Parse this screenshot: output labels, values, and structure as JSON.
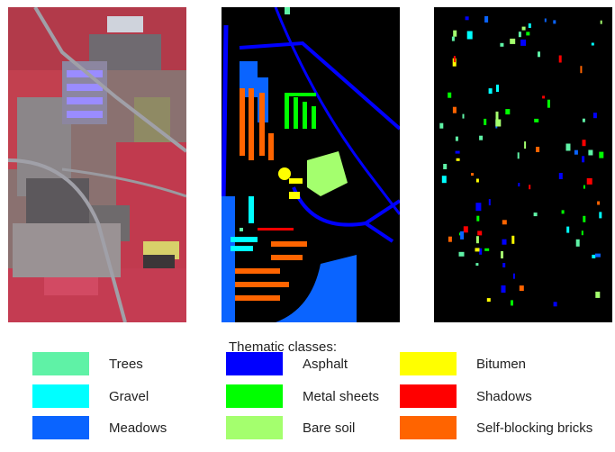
{
  "panels": [
    {
      "id": "false-color-composite"
    },
    {
      "id": "ground-truth-map"
    },
    {
      "id": "training-samples-map"
    }
  ],
  "legend": {
    "title": "Thematic classes:",
    "items": [
      {
        "label": "Trees",
        "color": "#5ff2a6"
      },
      {
        "label": "Gravel",
        "color": "#00ffff"
      },
      {
        "label": "Meadows",
        "color": "#0a64ff"
      },
      {
        "label": "Asphalt",
        "color": "#0000ff"
      },
      {
        "label": "Metal sheets",
        "color": "#00ff00"
      },
      {
        "label": "Bare soil",
        "color": "#a4ff6e"
      },
      {
        "label": "Bitumen",
        "color": "#ffff00"
      },
      {
        "label": "Shadows",
        "color": "#ff0000"
      },
      {
        "label": "Self-blocking bricks",
        "color": "#ff6400"
      }
    ]
  }
}
